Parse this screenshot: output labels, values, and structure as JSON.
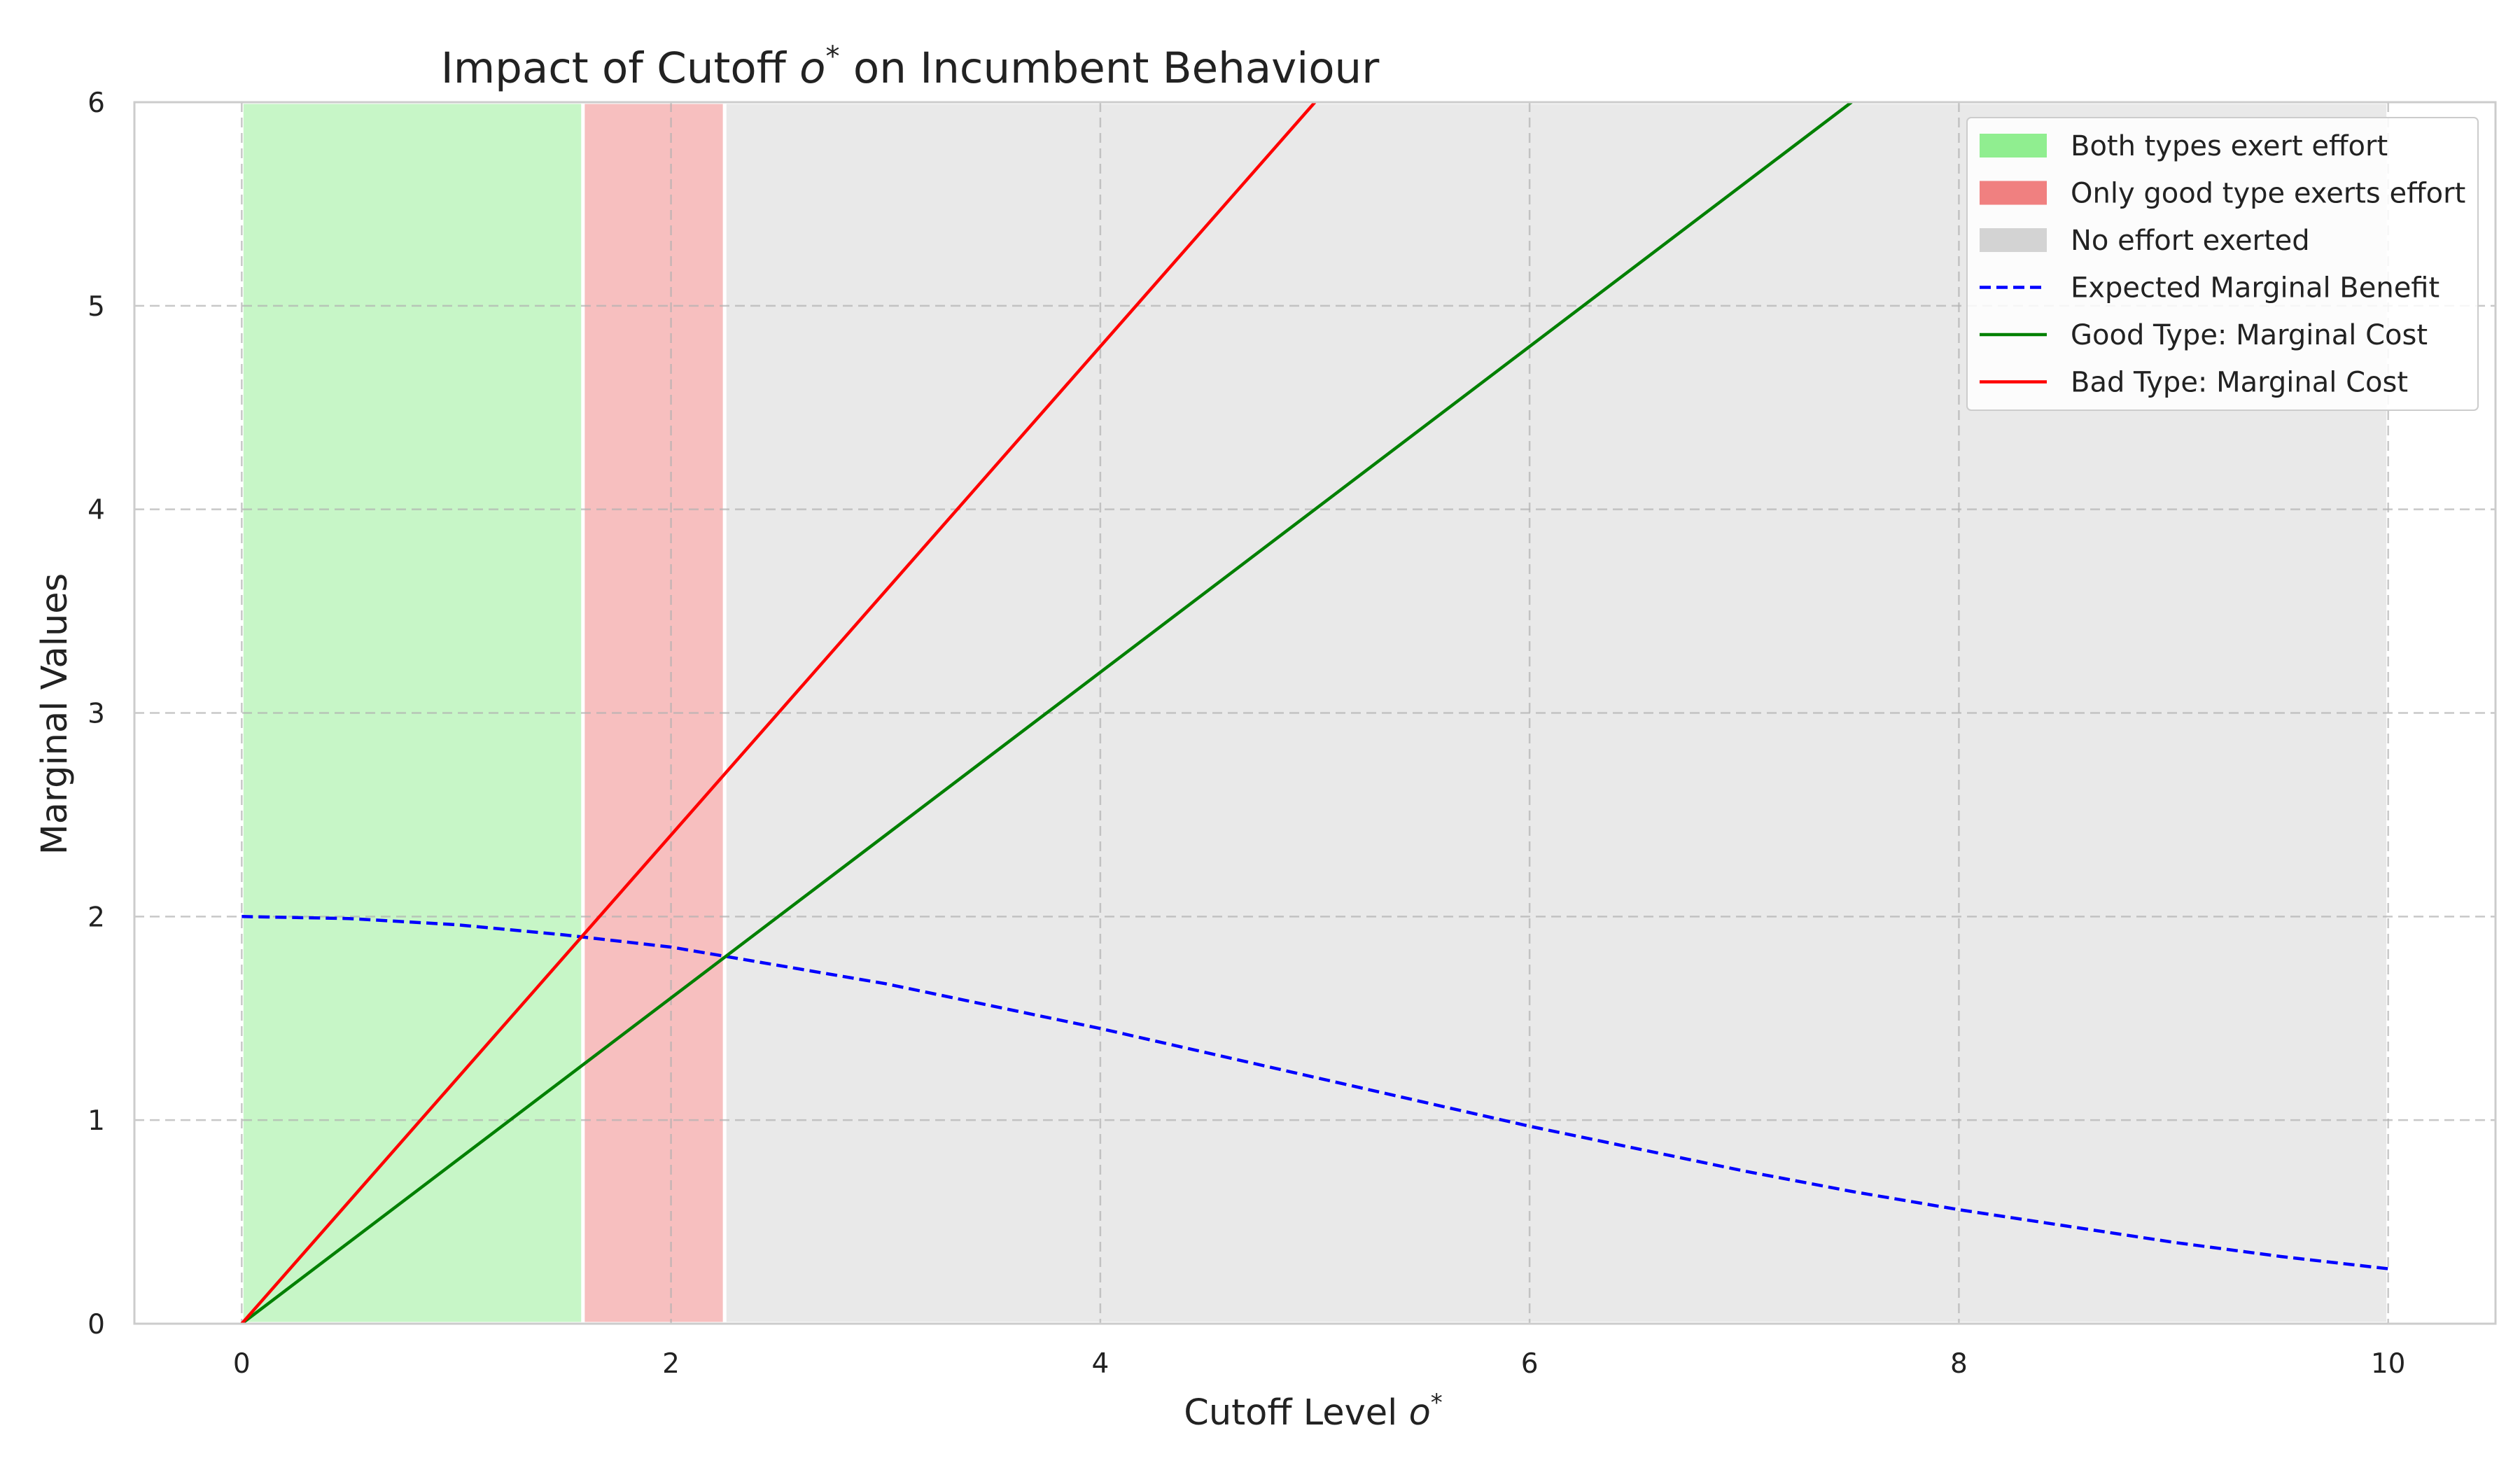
{
  "chart_data": {
    "type": "line",
    "title": {
      "prefix": "Impact of Cutoff ",
      "symbol": "o",
      "superscript": "*",
      "suffix": " on Incumbent Behaviour"
    },
    "xlabel": {
      "prefix": "Cutoff Level ",
      "symbol": "o",
      "superscript": "*"
    },
    "ylabel": "Marginal Values",
    "xlim": [
      -0.5,
      10.5
    ],
    "ylim": [
      0,
      6
    ],
    "xticks": [
      0,
      2,
      4,
      6,
      8,
      10
    ],
    "xtick_labels": [
      "0",
      "2",
      "4",
      "6",
      "8",
      "10"
    ],
    "yticks": [
      0,
      1,
      2,
      3,
      4,
      5,
      6
    ],
    "ytick_labels": [
      "0",
      "1",
      "2",
      "3",
      "4",
      "5",
      "6"
    ],
    "grid": true,
    "legend_position": "top-right",
    "regions": [
      {
        "name": "Both types exert effort",
        "x_start": 0,
        "x_end": 1.59,
        "color": "#90ee90",
        "alpha": 0.5
      },
      {
        "name": "Only good type exerts effort",
        "x_start": 1.59,
        "x_end": 2.25,
        "color": "#f08080",
        "alpha": 0.5
      },
      {
        "name": "No effort exerted",
        "x_start": 2.25,
        "x_end": 10,
        "color": "#d3d3d3",
        "alpha": 0.5
      }
    ],
    "series": [
      {
        "name": "Expected Marginal Benefit",
        "color": "#0000ff",
        "style": "dashed",
        "x": [
          0,
          0.5,
          1,
          1.5,
          2,
          2.5,
          3,
          3.5,
          4,
          4.5,
          5,
          5.5,
          6,
          6.5,
          7,
          7.5,
          8,
          8.5,
          9,
          9.5,
          10
        ],
        "y": [
          2.0,
          1.99,
          1.96,
          1.91,
          1.85,
          1.76,
          1.67,
          1.56,
          1.45,
          1.33,
          1.21,
          1.09,
          0.97,
          0.86,
          0.75,
          0.65,
          0.56,
          0.48,
          0.4,
          0.33,
          0.27
        ]
      },
      {
        "name": "Good Type: Marginal Cost",
        "color": "#008000",
        "style": "solid",
        "x": [
          0,
          7.5
        ],
        "y": [
          0,
          6
        ]
      },
      {
        "name": "Bad Type: Marginal Cost",
        "color": "#ff0000",
        "style": "solid",
        "x": [
          0,
          5
        ],
        "y": [
          0,
          6
        ]
      }
    ]
  }
}
